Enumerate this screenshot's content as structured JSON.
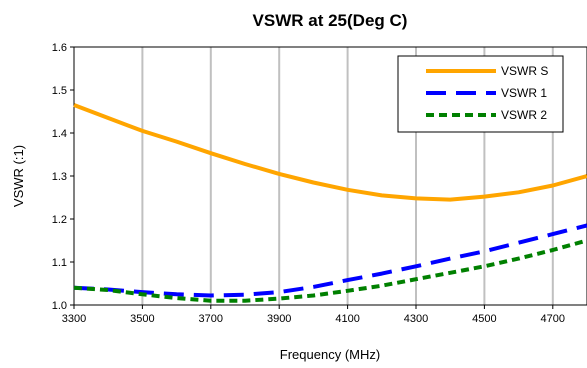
{
  "chart_data": {
    "type": "line",
    "title": "VSWR at 25(Deg C)",
    "xlabel": "Frequency (MHz)",
    "ylabel": "VSWR (:1)",
    "xlim": [
      3300,
      4800
    ],
    "ylim": [
      1.0,
      1.6
    ],
    "x_ticks": [
      3300,
      3500,
      3700,
      3900,
      4100,
      4300,
      4500,
      4700
    ],
    "y_ticks": [
      "1.0",
      "1.1",
      "1.2",
      "1.3",
      "1.4",
      "1.5",
      "1.6"
    ],
    "grid": "vertical",
    "legend_position": "top-right",
    "series": [
      {
        "name": "VSWR S",
        "color": "#FFA500",
        "style": "solid",
        "x": [
          3300,
          3400,
          3500,
          3600,
          3700,
          3800,
          3900,
          4000,
          4100,
          4200,
          4300,
          4400,
          4500,
          4600,
          4700,
          4800
        ],
        "y": [
          1.465,
          1.435,
          1.405,
          1.38,
          1.353,
          1.328,
          1.305,
          1.285,
          1.268,
          1.255,
          1.248,
          1.245,
          1.252,
          1.262,
          1.278,
          1.3
        ]
      },
      {
        "name": "VSWR 1",
        "color": "#0000FF",
        "style": "longdash",
        "x": [
          3300,
          3400,
          3500,
          3600,
          3700,
          3800,
          3900,
          4000,
          4100,
          4200,
          4300,
          4400,
          4500,
          4600,
          4700,
          4800
        ],
        "y": [
          1.04,
          1.036,
          1.03,
          1.025,
          1.022,
          1.024,
          1.03,
          1.042,
          1.058,
          1.073,
          1.09,
          1.108,
          1.125,
          1.145,
          1.165,
          1.185
        ]
      },
      {
        "name": "VSWR 2",
        "color": "#008000",
        "style": "shortdash",
        "x": [
          3300,
          3400,
          3500,
          3600,
          3700,
          3800,
          3900,
          4000,
          4100,
          4200,
          4300,
          4400,
          4500,
          4600,
          4700,
          4800
        ],
        "y": [
          1.04,
          1.035,
          1.025,
          1.016,
          1.01,
          1.01,
          1.015,
          1.022,
          1.033,
          1.045,
          1.06,
          1.075,
          1.09,
          1.108,
          1.128,
          1.15
        ]
      }
    ]
  }
}
